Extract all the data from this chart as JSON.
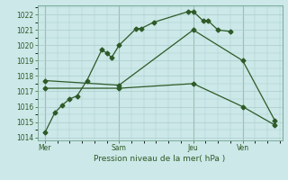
{
  "bg_color": "#cce8e8",
  "grid_color": "#aacccc",
  "line_color": "#2d5a27",
  "title": "Pression niveau de la mer( hPa )",
  "ylim_min": 1013.8,
  "ylim_max": 1022.6,
  "yticks": [
    1014,
    1015,
    1016,
    1017,
    1018,
    1019,
    1020,
    1021,
    1022
  ],
  "day_labels": [
    "Mer",
    "Sam",
    "Jeu",
    "Ven"
  ],
  "day_positions": [
    0,
    30,
    60,
    80
  ],
  "xmin": -3,
  "xmax": 96,
  "s1x": [
    0,
    4,
    7,
    10,
    13,
    17,
    23,
    25,
    27,
    30,
    37,
    39,
    44,
    58,
    60,
    64,
    66,
    70,
    75
  ],
  "s1y": [
    1014.3,
    1015.6,
    1016.1,
    1016.5,
    1016.7,
    1017.7,
    1019.7,
    1019.5,
    1019.2,
    1020.0,
    1021.1,
    1021.1,
    1021.5,
    1022.2,
    1022.2,
    1021.6,
    1021.6,
    1021.0,
    1020.9
  ],
  "s2x": [
    0,
    30,
    60,
    80,
    93
  ],
  "s2y": [
    1017.7,
    1017.4,
    1021.0,
    1019.0,
    1015.1
  ],
  "s3x": [
    0,
    30,
    60,
    80,
    93
  ],
  "s3y": [
    1017.2,
    1017.2,
    1017.5,
    1016.0,
    1014.8
  ]
}
